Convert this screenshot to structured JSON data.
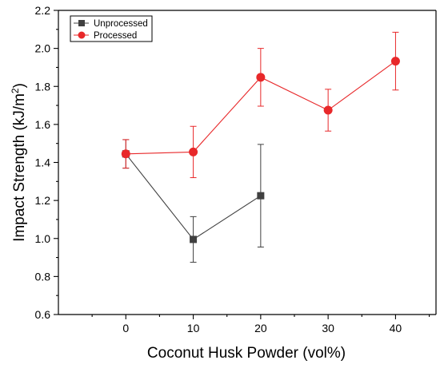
{
  "chart_data": {
    "type": "line",
    "xlabel": "Coconut Husk Powder (vol%)",
    "ylabel_prefix": "Impact Strength (kJ/m",
    "ylabel_sup": "2",
    "ylabel_suffix": ")",
    "xlim": [
      -10,
      46
    ],
    "ylim": [
      0.6,
      2.2
    ],
    "xticks": [
      0,
      10,
      20,
      30,
      40
    ],
    "yticks": [
      0.6,
      0.8,
      1.0,
      1.2,
      1.4,
      1.6,
      1.8,
      2.0,
      2.2
    ],
    "ytick_labels": [
      "0.6",
      "0.8",
      "1.0",
      "1.2",
      "1.4",
      "1.6",
      "1.8",
      "2.0",
      "2.2"
    ],
    "grid": false,
    "legend_position": "top-left",
    "series": [
      {
        "name": "Unprocessed",
        "color": "#404040",
        "marker": "square",
        "x": [
          0,
          10,
          20
        ],
        "y": [
          1.445,
          0.995,
          1.225
        ],
        "err": [
          0.075,
          0.12,
          0.27
        ]
      },
      {
        "name": "Processed",
        "color": "#e8282a",
        "marker": "circle",
        "x": [
          0,
          10,
          20,
          30,
          40
        ],
        "y": [
          1.445,
          1.455,
          1.848,
          1.675,
          1.933
        ],
        "err": [
          0.075,
          0.135,
          0.152,
          0.11,
          0.152
        ]
      }
    ]
  }
}
